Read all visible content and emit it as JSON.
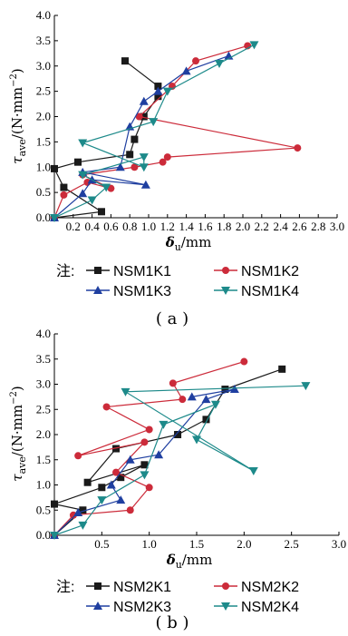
{
  "colors": {
    "K1": "#1a1a1a",
    "K2": "#cc2b3a",
    "K3": "#1f3fa0",
    "K4": "#1d8a8a"
  },
  "chart_data": [
    {
      "type": "line",
      "caption": "( a )",
      "xlabel_main": "δ",
      "xlabel_sub": "u",
      "xlabel_unit": "/mm",
      "ylabel_main": "τ",
      "ylabel_sub": "ave",
      "ylabel_unit": "/(N·mm",
      "ylabel_exp": "−2",
      "ylabel_close": ")",
      "xlim": [
        0,
        3.0
      ],
      "ylim": [
        0,
        4.0
      ],
      "xticks": [
        "0.2",
        "0.4",
        "0.6",
        "0.8",
        "1.0",
        "1.2",
        "1.4",
        "1.6",
        "1.8",
        "2.0",
        "2.2",
        "2.4",
        "2.6",
        "2.8",
        "3.0"
      ],
      "yticks": [
        "0.0",
        "0.5",
        "1.0",
        "1.5",
        "2.0",
        "2.5",
        "3.0",
        "3.5",
        "4.0"
      ],
      "legend_prefix": "注:",
      "series": [
        {
          "name": "NSM1K1",
          "marker": "square",
          "color_key": "K1",
          "points": [
            [
              0.0,
              0.0
            ],
            [
              0.5,
              0.12
            ],
            [
              0.1,
              0.6
            ],
            [
              0.0,
              0.97
            ],
            [
              0.25,
              1.1
            ],
            [
              0.8,
              1.25
            ],
            [
              0.85,
              1.55
            ],
            [
              0.95,
              2.0
            ],
            [
              1.1,
              2.4
            ],
            [
              1.1,
              2.6
            ],
            [
              0.75,
              3.1
            ]
          ]
        },
        {
          "name": "NSM1K2",
          "marker": "circle",
          "color_key": "K2",
          "points": [
            [
              0.0,
              0.0
            ],
            [
              0.1,
              0.45
            ],
            [
              0.35,
              0.7
            ],
            [
              0.6,
              0.58
            ],
            [
              0.3,
              0.85
            ],
            [
              0.85,
              1.0
            ],
            [
              1.15,
              1.1
            ],
            [
              1.2,
              1.2
            ],
            [
              2.58,
              1.38
            ],
            [
              0.9,
              2.0
            ],
            [
              1.25,
              2.6
            ],
            [
              1.5,
              3.1
            ],
            [
              2.05,
              3.4
            ]
          ]
        },
        {
          "name": "NSM1K3",
          "marker": "triangle-up",
          "color_key": "K3",
          "points": [
            [
              0.0,
              0.0
            ],
            [
              0.3,
              0.48
            ],
            [
              0.4,
              0.75
            ],
            [
              0.97,
              0.65
            ],
            [
              0.3,
              0.9
            ],
            [
              0.7,
              1.0
            ],
            [
              0.8,
              1.8
            ],
            [
              0.95,
              2.3
            ],
            [
              1.1,
              2.5
            ],
            [
              1.4,
              2.9
            ],
            [
              1.85,
              3.2
            ]
          ]
        },
        {
          "name": "NSM1K4",
          "marker": "triangle-down",
          "color_key": "K4",
          "points": [
            [
              0.0,
              0.0
            ],
            [
              0.4,
              0.35
            ],
            [
              0.55,
              0.6
            ],
            [
              0.3,
              0.85
            ],
            [
              0.95,
              1.2
            ],
            [
              0.95,
              1.0
            ],
            [
              0.3,
              1.48
            ],
            [
              1.05,
              1.9
            ],
            [
              1.2,
              2.5
            ],
            [
              1.75,
              3.05
            ],
            [
              2.12,
              3.42
            ]
          ]
        }
      ]
    },
    {
      "type": "line",
      "caption": "( b )",
      "xlabel_main": "δ",
      "xlabel_sub": "u",
      "xlabel_unit": "/mm",
      "ylabel_main": "τ",
      "ylabel_sub": "ave",
      "ylabel_unit": "/(N·mm",
      "ylabel_exp": "−2",
      "ylabel_close": ")",
      "xlim": [
        0,
        3.0
      ],
      "ylim": [
        0,
        4.0
      ],
      "xticks": [
        "0.5",
        "1.0",
        "1.5",
        "2.0",
        "2.5",
        "3.0"
      ],
      "yticks": [
        "0.0",
        "0.5",
        "1.0",
        "1.5",
        "2.0",
        "2.5",
        "3.0",
        "3.5",
        "4.0"
      ],
      "legend_prefix": "注:",
      "series": [
        {
          "name": "NSM2K1",
          "marker": "square",
          "color_key": "K1",
          "points": [
            [
              0.0,
              0.0
            ],
            [
              0.3,
              0.5
            ],
            [
              0.0,
              0.62
            ],
            [
              0.5,
              0.95
            ],
            [
              0.7,
              1.15
            ],
            [
              0.95,
              1.4
            ],
            [
              0.35,
              1.05
            ],
            [
              0.65,
              1.72
            ],
            [
              1.3,
              2.0
            ],
            [
              1.6,
              2.3
            ],
            [
              1.8,
              2.9
            ],
            [
              2.4,
              3.3
            ]
          ]
        },
        {
          "name": "NSM2K2",
          "marker": "circle",
          "color_key": "K2",
          "points": [
            [
              0.0,
              0.0
            ],
            [
              0.2,
              0.4
            ],
            [
              0.8,
              0.5
            ],
            [
              1.0,
              0.95
            ],
            [
              0.65,
              1.25
            ],
            [
              0.95,
              1.85
            ],
            [
              0.25,
              1.58
            ],
            [
              1.0,
              2.1
            ],
            [
              0.55,
              2.55
            ],
            [
              1.35,
              2.7
            ],
            [
              1.25,
              3.02
            ],
            [
              2.0,
              3.45
            ]
          ]
        },
        {
          "name": "NSM2K3",
          "marker": "triangle-up",
          "color_key": "K3",
          "points": [
            [
              0.0,
              0.0
            ],
            [
              0.25,
              0.45
            ],
            [
              0.7,
              0.7
            ],
            [
              0.6,
              1.0
            ],
            [
              0.8,
              1.5
            ],
            [
              1.1,
              1.6
            ],
            [
              1.6,
              2.7
            ],
            [
              1.9,
              2.9
            ],
            [
              1.45,
              2.75
            ]
          ]
        },
        {
          "name": "NSM2K4",
          "marker": "triangle-down",
          "color_key": "K4",
          "points": [
            [
              0.0,
              0.0
            ],
            [
              0.3,
              0.2
            ],
            [
              0.5,
              0.7
            ],
            [
              0.95,
              1.2
            ],
            [
              1.15,
              2.2
            ],
            [
              1.7,
              2.6
            ],
            [
              1.5,
              1.9
            ],
            [
              2.1,
              1.28
            ],
            [
              0.75,
              2.85
            ],
            [
              2.65,
              2.97
            ]
          ]
        }
      ]
    }
  ]
}
